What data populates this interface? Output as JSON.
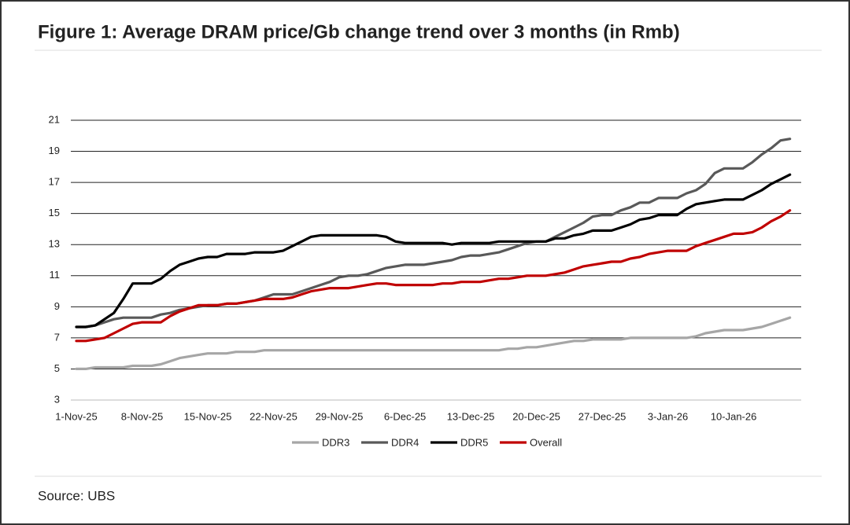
{
  "chart_data": {
    "type": "line",
    "title": "Figure 1: Average DRAM price/Gb change trend over 3 months (in Rmb)",
    "source": "Source: UBS",
    "categories": [
      "1-Nov-25",
      null,
      null,
      null,
      null,
      null,
      null,
      "8-Nov-25",
      null,
      null,
      null,
      null,
      null,
      null,
      "15-Nov-25",
      null,
      null,
      null,
      null,
      null,
      null,
      "22-Nov-25",
      null,
      null,
      null,
      null,
      null,
      null,
      "29-Nov-25",
      null,
      null,
      null,
      null,
      null,
      null,
      "6-Dec-25",
      null,
      null,
      null,
      null,
      null,
      null,
      "13-Dec-25",
      null,
      null,
      null,
      null,
      null,
      null,
      "20-Dec-25",
      null,
      null,
      null,
      null,
      null,
      null,
      "27-Dec-25",
      null,
      null,
      null,
      null,
      null,
      null,
      "3-Jan-26",
      null,
      null,
      null,
      null,
      null,
      null,
      "10-Jan-26",
      null,
      null,
      null,
      null,
      null,
      null
    ],
    "series": [
      {
        "name": "DDR3",
        "color": "#a6a6a6",
        "values": [
          5.0,
          5.0,
          5.1,
          5.1,
          5.1,
          5.1,
          5.2,
          5.2,
          5.2,
          5.3,
          5.5,
          5.7,
          5.8,
          5.9,
          6.0,
          6.0,
          6.0,
          6.1,
          6.1,
          6.1,
          6.2,
          6.2,
          6.2,
          6.2,
          6.2,
          6.2,
          6.2,
          6.2,
          6.2,
          6.2,
          6.2,
          6.2,
          6.2,
          6.2,
          6.2,
          6.2,
          6.2,
          6.2,
          6.2,
          6.2,
          6.2,
          6.2,
          6.2,
          6.2,
          6.2,
          6.2,
          6.3,
          6.3,
          6.4,
          6.4,
          6.5,
          6.6,
          6.7,
          6.8,
          6.8,
          6.9,
          6.9,
          6.9,
          6.9,
          7.0,
          7.0,
          7.0,
          7.0,
          7.0,
          7.0,
          7.0,
          7.1,
          7.3,
          7.4,
          7.5,
          7.5,
          7.5,
          7.6,
          7.7,
          7.9,
          8.1,
          8.3
        ]
      },
      {
        "name": "DDR4",
        "color": "#595959",
        "values": [
          7.7,
          7.7,
          7.8,
          8.0,
          8.2,
          8.3,
          8.3,
          8.3,
          8.3,
          8.5,
          8.6,
          8.8,
          8.9,
          9.0,
          9.1,
          9.1,
          9.2,
          9.2,
          9.3,
          9.4,
          9.6,
          9.8,
          9.8,
          9.8,
          10.0,
          10.2,
          10.4,
          10.6,
          10.9,
          11.0,
          11.0,
          11.1,
          11.3,
          11.5,
          11.6,
          11.7,
          11.7,
          11.7,
          11.8,
          11.9,
          12.0,
          12.2,
          12.3,
          12.3,
          12.4,
          12.5,
          12.7,
          12.9,
          13.1,
          13.2,
          13.2,
          13.5,
          13.8,
          14.1,
          14.4,
          14.8,
          14.9,
          14.9,
          15.2,
          15.4,
          15.7,
          15.7,
          16.0,
          16.0,
          16.0,
          16.3,
          16.5,
          16.9,
          17.6,
          17.9,
          17.9,
          17.9,
          18.3,
          18.8,
          19.2,
          19.7,
          19.8
        ]
      },
      {
        "name": "DDR5",
        "color": "#000000",
        "values": [
          7.7,
          7.7,
          7.8,
          8.2,
          8.6,
          9.5,
          10.5,
          10.5,
          10.5,
          10.8,
          11.3,
          11.7,
          11.9,
          12.1,
          12.2,
          12.2,
          12.4,
          12.4,
          12.4,
          12.5,
          12.5,
          12.5,
          12.6,
          12.9,
          13.2,
          13.5,
          13.6,
          13.6,
          13.6,
          13.6,
          13.6,
          13.6,
          13.6,
          13.5,
          13.2,
          13.1,
          13.1,
          13.1,
          13.1,
          13.1,
          13.0,
          13.1,
          13.1,
          13.1,
          13.1,
          13.2,
          13.2,
          13.2,
          13.2,
          13.2,
          13.2,
          13.4,
          13.4,
          13.6,
          13.7,
          13.9,
          13.9,
          13.9,
          14.1,
          14.3,
          14.6,
          14.7,
          14.9,
          14.9,
          14.9,
          15.3,
          15.6,
          15.7,
          15.8,
          15.9,
          15.9,
          15.9,
          16.2,
          16.5,
          16.9,
          17.2,
          17.5
        ]
      },
      {
        "name": "Overall",
        "color": "#c00000",
        "values": [
          6.8,
          6.8,
          6.9,
          7.0,
          7.3,
          7.6,
          7.9,
          8.0,
          8.0,
          8.0,
          8.4,
          8.7,
          8.9,
          9.1,
          9.1,
          9.1,
          9.2,
          9.2,
          9.3,
          9.4,
          9.5,
          9.5,
          9.5,
          9.6,
          9.8,
          10.0,
          10.1,
          10.2,
          10.2,
          10.2,
          10.3,
          10.4,
          10.5,
          10.5,
          10.4,
          10.4,
          10.4,
          10.4,
          10.4,
          10.5,
          10.5,
          10.6,
          10.6,
          10.6,
          10.7,
          10.8,
          10.8,
          10.9,
          11.0,
          11.0,
          11.0,
          11.1,
          11.2,
          11.4,
          11.6,
          11.7,
          11.8,
          11.9,
          11.9,
          12.1,
          12.2,
          12.4,
          12.5,
          12.6,
          12.6,
          12.6,
          12.9,
          13.1,
          13.3,
          13.5,
          13.7,
          13.7,
          13.8,
          14.1,
          14.5,
          14.8,
          15.2
        ]
      }
    ],
    "ylim": [
      3,
      21
    ],
    "yticks": [
      3,
      5,
      7,
      9,
      11,
      13,
      15,
      17,
      19,
      21
    ],
    "grid": true,
    "legend": "bottom"
  }
}
